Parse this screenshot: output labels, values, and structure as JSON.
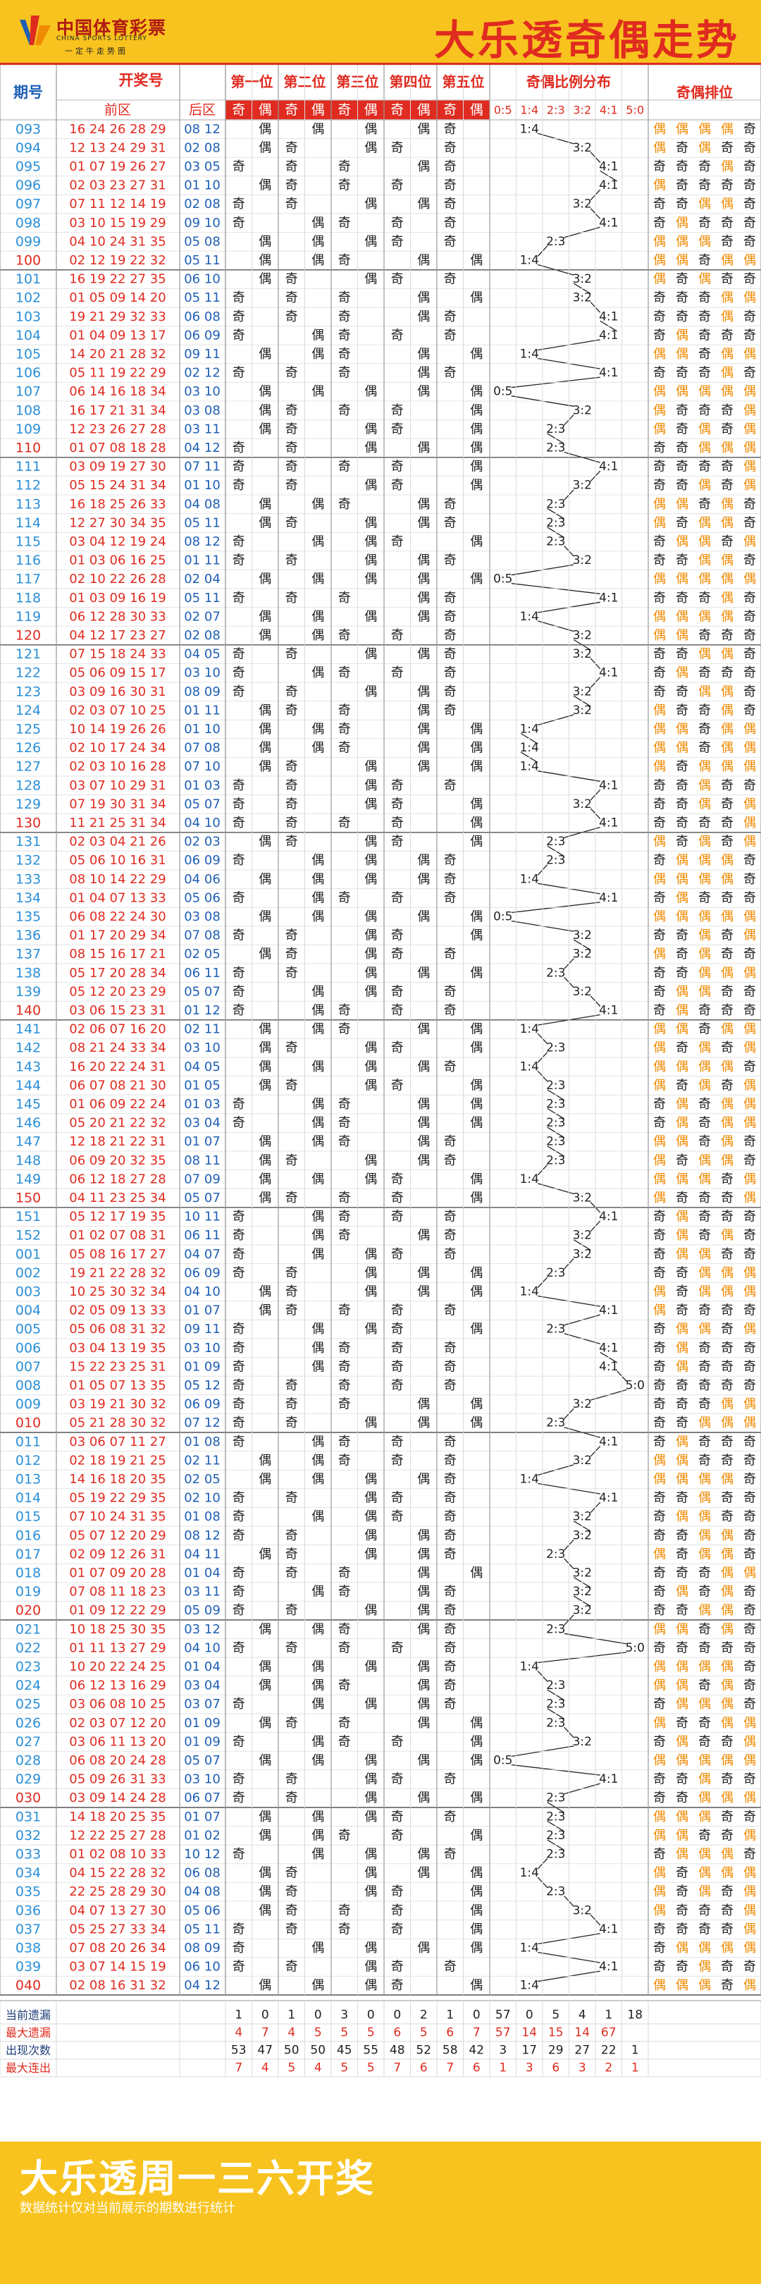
{
  "header": {
    "logo_cn": "中国体育彩票",
    "logo_en": "CHINA SPORTS LOTTERY",
    "logo_sub": "一定牛走势图",
    "title": "大乐透奇偶走势"
  },
  "colors": {
    "red": "#e02b20",
    "blue": "#1f5fb4",
    "orange": "#f08a00",
    "yellow": "#f8c31e",
    "highlight": "#ffe8a6"
  },
  "table": {
    "head": {
      "period": "期号",
      "draw": "开奖号",
      "front": "前区",
      "back": "后区",
      "positions": [
        "第一位",
        "第二位",
        "第三位",
        "第四位",
        "第五位"
      ],
      "odd": "奇",
      "even": "偶",
      "ratio": "奇偶比例分布",
      "ratio_labels": [
        "0:5",
        "1:4",
        "2:3",
        "3:2",
        "4:1",
        "5:0"
      ],
      "arrangement": "奇偶排位"
    },
    "rows": [
      {
        "p": "093",
        "f": "16 24 26 28 29",
        "b": "08 12"
      },
      {
        "p": "094",
        "f": "12 13 24 29 31",
        "b": "02 08"
      },
      {
        "p": "095",
        "f": "01 07 19 26 27",
        "b": "03 05"
      },
      {
        "p": "096",
        "f": "02 03 23 27 31",
        "b": "01 10"
      },
      {
        "p": "097",
        "f": "07 11 12 14 19",
        "b": "02 08"
      },
      {
        "p": "098",
        "f": "03 10 15 19 29",
        "b": "09 10"
      },
      {
        "p": "099",
        "f": "04 10 24 31 35",
        "b": "05 08"
      },
      {
        "p": "100",
        "f": "02 12 19 22 32",
        "b": "05 11"
      },
      {
        "p": "101",
        "f": "16 19 22 27 35",
        "b": "06 10"
      },
      {
        "p": "102",
        "f": "01 05 09 14 20",
        "b": "05 11"
      },
      {
        "p": "103",
        "f": "19 21 29 32 33",
        "b": "06 08"
      },
      {
        "p": "104",
        "f": "01 04 09 13 17",
        "b": "06 09"
      },
      {
        "p": "105",
        "f": "14 20 21 28 32",
        "b": "09 11"
      },
      {
        "p": "106",
        "f": "05 11 19 22 29",
        "b": "02 12"
      },
      {
        "p": "107",
        "f": "06 14 16 18 34",
        "b": "03 10"
      },
      {
        "p": "108",
        "f": "16 17 21 31 34",
        "b": "03 08"
      },
      {
        "p": "109",
        "f": "12 23 26 27 28",
        "b": "03 11"
      },
      {
        "p": "110",
        "f": "01 07 08 18 28",
        "b": "04 12"
      },
      {
        "p": "111",
        "f": "03 09 19 27 30",
        "b": "07 11"
      },
      {
        "p": "112",
        "f": "05 15 24 31 34",
        "b": "01 10"
      },
      {
        "p": "113",
        "f": "16 18 25 26 33",
        "b": "04 08"
      },
      {
        "p": "114",
        "f": "12 27 30 34 35",
        "b": "05 11"
      },
      {
        "p": "115",
        "f": "03 04 12 19 24",
        "b": "08 12"
      },
      {
        "p": "116",
        "f": "01 03 06 16 25",
        "b": "01 11"
      },
      {
        "p": "117",
        "f": "02 10 22 26 28",
        "b": "02 04"
      },
      {
        "p": "118",
        "f": "01 03 09 16 19",
        "b": "05 11"
      },
      {
        "p": "119",
        "f": "06 12 28 30 33",
        "b": "02 07"
      },
      {
        "p": "120",
        "f": "04 12 17 23 27",
        "b": "02 08"
      },
      {
        "p": "121",
        "f": "07 15 18 24 33",
        "b": "04 05"
      },
      {
        "p": "122",
        "f": "05 06 09 15 17",
        "b": "03 10"
      },
      {
        "p": "123",
        "f": "03 09 16 30 31",
        "b": "08 09"
      },
      {
        "p": "124",
        "f": "02 03 07 10 25",
        "b": "01 11"
      },
      {
        "p": "125",
        "f": "10 14 19 26 26",
        "b": "01 10"
      },
      {
        "p": "126",
        "f": "02 10 17 24 34",
        "b": "07 08"
      },
      {
        "p": "127",
        "f": "02 03 10 16 28",
        "b": "07 10"
      },
      {
        "p": "128",
        "f": "03 07 10 29 31",
        "b": "01 03"
      },
      {
        "p": "129",
        "f": "07 19 30 31 34",
        "b": "05 07"
      },
      {
        "p": "130",
        "f": "11 21 25 31 34",
        "b": "04 10"
      },
      {
        "p": "131",
        "f": "02 03 04 21 26",
        "b": "02 03"
      },
      {
        "p": "132",
        "f": "05 06 10 16 31",
        "b": "06 09"
      },
      {
        "p": "133",
        "f": "08 10 14 22 29",
        "b": "04 06"
      },
      {
        "p": "134",
        "f": "01 04 07 13 33",
        "b": "05 06"
      },
      {
        "p": "135",
        "f": "06 08 22 24 30",
        "b": "03 08"
      },
      {
        "p": "136",
        "f": "01 17 20 29 34",
        "b": "07 08"
      },
      {
        "p": "137",
        "f": "08 15 16 17 21",
        "b": "02 05"
      },
      {
        "p": "138",
        "f": "05 17 20 28 34",
        "b": "06 11"
      },
      {
        "p": "139",
        "f": "05 12 20 23 29",
        "b": "05 07"
      },
      {
        "p": "140",
        "f": "03 06 15 23 31",
        "b": "01 12"
      },
      {
        "p": "141",
        "f": "02 06 07 16 20",
        "b": "02 11"
      },
      {
        "p": "142",
        "f": "08 21 24 33 34",
        "b": "03 10"
      },
      {
        "p": "143",
        "f": "16 20 22 24 31",
        "b": "04 05"
      },
      {
        "p": "144",
        "f": "06 07 08 21 30",
        "b": "01 05"
      },
      {
        "p": "145",
        "f": "01 06 09 22 24",
        "b": "01 03"
      },
      {
        "p": "146",
        "f": "05 20 21 22 32",
        "b": "03 04"
      },
      {
        "p": "147",
        "f": "12 18 21 22 31",
        "b": "01 07"
      },
      {
        "p": "148",
        "f": "06 09 20 32 35",
        "b": "08 11"
      },
      {
        "p": "149",
        "f": "06 12 18 27 28",
        "b": "07 09"
      },
      {
        "p": "150",
        "f": "04 11 23 25 34",
        "b": "05 07"
      },
      {
        "p": "151",
        "f": "05 12 17 19 35",
        "b": "10 11"
      },
      {
        "p": "152",
        "f": "01 02 07 08 31",
        "b": "06 11"
      },
      {
        "p": "001",
        "f": "05 08 16 17 27",
        "b": "04 07"
      },
      {
        "p": "002",
        "f": "19 21 22 28 32",
        "b": "06 09"
      },
      {
        "p": "003",
        "f": "10 25 30 32 34",
        "b": "04 10"
      },
      {
        "p": "004",
        "f": "02 05 09 13 33",
        "b": "01 07"
      },
      {
        "p": "005",
        "f": "05 06 08 31 32",
        "b": "09 11"
      },
      {
        "p": "006",
        "f": "03 04 13 19 35",
        "b": "03 10"
      },
      {
        "p": "007",
        "f": "15 22 23 25 31",
        "b": "01 09"
      },
      {
        "p": "008",
        "f": "01 05 07 13 35",
        "b": "05 12"
      },
      {
        "p": "009",
        "f": "03 19 21 30 32",
        "b": "06 09"
      },
      {
        "p": "010",
        "f": "05 21 28 30 32",
        "b": "07 12"
      },
      {
        "p": "011",
        "f": "03 06 07 11 27",
        "b": "01 08"
      },
      {
        "p": "012",
        "f": "02 18 19 21 25",
        "b": "02 11"
      },
      {
        "p": "013",
        "f": "14 16 18 20 35",
        "b": "02 05"
      },
      {
        "p": "014",
        "f": "05 19 22 29 35",
        "b": "02 10"
      },
      {
        "p": "015",
        "f": "07 10 24 31 35",
        "b": "01 08"
      },
      {
        "p": "016",
        "f": "05 07 12 20 29",
        "b": "08 12"
      },
      {
        "p": "017",
        "f": "02 09 12 26 31",
        "b": "04 11"
      },
      {
        "p": "018",
        "f": "01 07 09 20 28",
        "b": "01 04"
      },
      {
        "p": "019",
        "f": "07 08 11 18 23",
        "b": "03 11"
      },
      {
        "p": "020",
        "f": "01 09 12 22 29",
        "b": "05 09"
      },
      {
        "p": "021",
        "f": "10 18 25 30 35",
        "b": "03 12"
      },
      {
        "p": "022",
        "f": "01 11 13 27 29",
        "b": "04 10"
      },
      {
        "p": "023",
        "f": "10 20 22 24 25",
        "b": "01 04"
      },
      {
        "p": "024",
        "f": "06 12 13 16 29",
        "b": "03 04"
      },
      {
        "p": "025",
        "f": "03 06 08 10 25",
        "b": "03 07"
      },
      {
        "p": "026",
        "f": "02 03 07 12 20",
        "b": "01 09"
      },
      {
        "p": "027",
        "f": "03 06 11 13 20",
        "b": "01 09"
      },
      {
        "p": "028",
        "f": "06 08 20 24 28",
        "b": "05 07"
      },
      {
        "p": "029",
        "f": "05 09 26 31 33",
        "b": "03 10"
      },
      {
        "p": "030",
        "f": "03 09 14 24 28",
        "b": "06 07"
      },
      {
        "p": "031",
        "f": "14 18 20 25 35",
        "b": "01 07"
      },
      {
        "p": "032",
        "f": "12 22 25 27 28",
        "b": "01 02"
      },
      {
        "p": "033",
        "f": "01 02 08 10 33",
        "b": "10 12"
      },
      {
        "p": "034",
        "f": "04 15 22 28 32",
        "b": "06 08"
      },
      {
        "p": "035",
        "f": "22 25 28 29 30",
        "b": "04 08"
      },
      {
        "p": "036",
        "f": "04 07 13 27 30",
        "b": "05 06"
      },
      {
        "p": "037",
        "f": "05 25 27 33 34",
        "b": "05 11"
      },
      {
        "p": "038",
        "f": "07 08 20 26 34",
        "b": "08 09"
      },
      {
        "p": "039",
        "f": "03 07 14 15 19",
        "b": "06 10"
      },
      {
        "p": "040",
        "f": "02 08 16 31 32",
        "b": "04 12"
      }
    ],
    "stats": {
      "labels": [
        "当前遗漏",
        "最大遗漏",
        "出现次数",
        "最大连出"
      ],
      "values": [
        [
          1,
          0,
          1,
          0,
          3,
          0,
          0,
          2,
          1,
          0,
          57,
          0,
          5,
          4,
          1,
          18
        ],
        [
          4,
          7,
          4,
          5,
          5,
          5,
          6,
          5,
          6,
          7,
          57,
          14,
          15,
          14,
          67,
          ""
        ],
        [
          53,
          47,
          50,
          50,
          45,
          55,
          48,
          52,
          58,
          42,
          3,
          17,
          29,
          27,
          22,
          1
        ],
        [
          7,
          4,
          5,
          4,
          5,
          5,
          7,
          6,
          7,
          6,
          1,
          3,
          6,
          3,
          2,
          1
        ]
      ]
    }
  },
  "footer": {
    "title": "大乐透周一三六开奖",
    "note": "数据统计仅对当前展示的期数进行统计"
  }
}
